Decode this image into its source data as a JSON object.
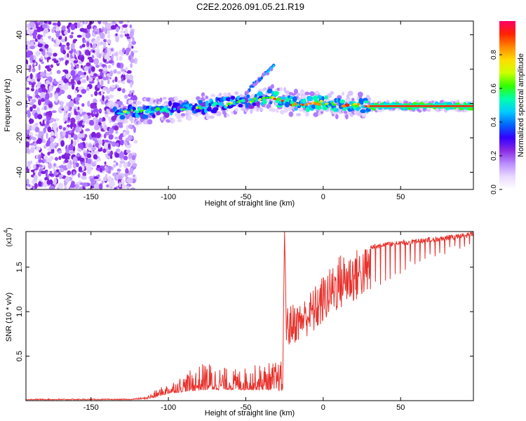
{
  "figure": {
    "title": "C2E2.2026.091.05.21.R19"
  },
  "chart_data": [
    {
      "type": "heatmap",
      "name": "spectrogram",
      "xlabel": "Height of straight line (km)",
      "ylabel": "Frequency (Hz)",
      "xlim": [
        -192,
        97
      ],
      "ylim": [
        -50,
        48
      ],
      "xticks": [
        -150,
        -100,
        -50,
        0,
        50
      ],
      "yticks": [
        -40,
        -20,
        0,
        20,
        40
      ],
      "noise_region_x": [
        -192,
        -121
      ],
      "ridge": {
        "x": [
          -135,
          -120,
          -100,
          -80,
          -60,
          -45,
          -35,
          -28,
          -20,
          -10,
          0,
          10,
          20,
          30,
          40,
          50,
          60,
          70,
          80,
          90,
          97
        ],
        "freq": [
          -6,
          -4.5,
          -3.5,
          -2,
          0,
          2,
          4,
          2,
          0,
          0,
          0.5,
          -1,
          -1,
          -1.5,
          -1.5,
          -1.5,
          -1.5,
          -1.5,
          -1.5,
          -1.5,
          -1.5
        ]
      },
      "branch": {
        "x": [
          -50,
          -45,
          -40,
          -35,
          -32
        ],
        "freq": [
          6,
          11,
          15,
          19,
          22
        ]
      },
      "colorbar": {
        "label": "Normalized spectral amplitude",
        "range": [
          0.0,
          1.0
        ],
        "ticks": [
          "0.0",
          "0.2",
          "0.4",
          "0.6",
          "0.8"
        ],
        "colors": [
          "#ffffff",
          "#e9d9ff",
          "#b98cff",
          "#8a2be2",
          "#3300ff",
          "#0066ff",
          "#00ccff",
          "#00ffaa",
          "#33ff00",
          "#ccff00",
          "#ffdd00",
          "#ff8800",
          "#ff2200",
          "#ff0066"
        ]
      }
    },
    {
      "type": "line",
      "name": "snr",
      "xlabel": "Height of straight line (km)",
      "ylabel": "SNR (10 * v/v)",
      "scale_label": "(x10",
      "scale_exponent": "4",
      "scale_suffix": ")",
      "xlim": [
        -192,
        97
      ],
      "ylim": [
        0,
        1.9
      ],
      "xticks": [
        -150,
        -100,
        -50,
        0,
        50
      ],
      "yticks": [
        0.5,
        1.0,
        1.5
      ],
      "ytick_labels": [
        "0.5",
        "1.0",
        "1.5"
      ],
      "color": "#e8312c",
      "envelope": {
        "x": [
          -192,
          -125,
          -115,
          -110,
          -100,
          -90,
          -75,
          -60,
          -50,
          -40,
          -30,
          -26,
          -25,
          -24,
          -22,
          -20,
          -15,
          -10,
          -5,
          0,
          5,
          10,
          20,
          30,
          40,
          50,
          60,
          70,
          80,
          90,
          97
        ],
        "base": [
          0.01,
          0.01,
          0.02,
          0.03,
          0.08,
          0.1,
          0.12,
          0.12,
          0.12,
          0.12,
          0.12,
          0.1,
          0.5,
          0.55,
          0.6,
          0.62,
          0.68,
          0.72,
          0.75,
          0.85,
          0.95,
          1.0,
          1.1,
          1.2,
          1.3,
          1.4,
          1.5,
          1.57,
          1.62,
          1.68,
          1.7
        ],
        "peak": [
          0.02,
          0.02,
          0.04,
          0.1,
          0.2,
          0.3,
          0.45,
          0.35,
          0.38,
          0.42,
          0.45,
          0.45,
          1.9,
          1.1,
          1.05,
          1.1,
          1.1,
          1.2,
          1.3,
          1.42,
          1.5,
          1.65,
          1.7,
          1.75,
          1.78,
          1.8,
          1.82,
          1.84,
          1.86,
          1.88,
          1.9
        ]
      }
    }
  ]
}
